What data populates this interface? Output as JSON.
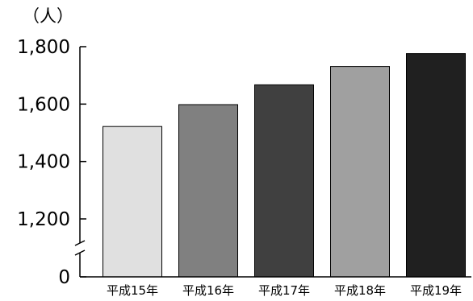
{
  "chart_data": {
    "type": "bar",
    "title": "",
    "xlabel": "",
    "ylabel": "",
    "unit_label": "（人）",
    "categories": [
      "平成15年",
      "平成16年",
      "平成17年",
      "平成18年",
      "平成19年"
    ],
    "values": [
      1522,
      1598,
      1667,
      1731,
      1776
    ],
    "y_ticks": [
      {
        "value": 0,
        "label": "0"
      },
      {
        "value": 1200,
        "label": "1,200"
      },
      {
        "value": 1400,
        "label": "1,400"
      },
      {
        "value": 1600,
        "label": "1,600"
      },
      {
        "value": 1800,
        "label": "1,800"
      }
    ],
    "ylim": [
      1000,
      1800
    ],
    "axis_break": true,
    "grid": false,
    "legend": "none",
    "bar_colors": [
      "#e0e0e0",
      "#808080",
      "#404040",
      "#a0a0a0",
      "#202020"
    ],
    "bar_edge_color": "#000000"
  }
}
